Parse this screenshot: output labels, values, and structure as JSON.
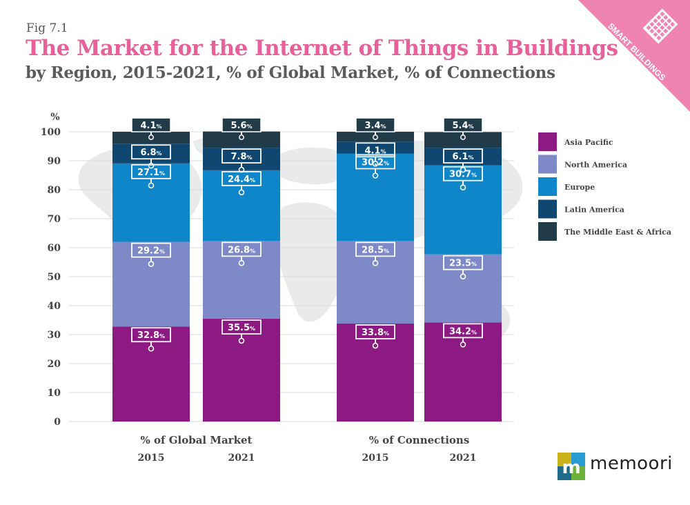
{
  "figure_label": "Fig 7.1",
  "title": "The Market for the Internet of Things in Buildings",
  "subtitle": "by Region, 2015-2021, % of Global Market, % of Connections",
  "badge": {
    "text": "SMART BUILDINGS",
    "color": "#ef84b3",
    "icon": "building-grid-icon"
  },
  "logo": {
    "text": "memoori",
    "icon": "memoori-logo-icon"
  },
  "chart_data": {
    "type": "bar",
    "stacked": true,
    "ylabel": "%",
    "ylim": [
      0,
      100
    ],
    "yticks": [
      0,
      10,
      20,
      30,
      40,
      50,
      60,
      70,
      80,
      90,
      100
    ],
    "grid": true,
    "legend_position": "right",
    "groups": [
      {
        "label": "% of Global Market",
        "categories": [
          "2015",
          "2021"
        ]
      },
      {
        "label": "% of Connections",
        "categories": [
          "2015",
          "2021"
        ]
      }
    ],
    "categories": [
      "2015",
      "2021",
      "2015",
      "2021"
    ],
    "series": [
      {
        "name": "Asia Pacific",
        "color": "#8c1a82",
        "values": [
          32.8,
          35.5,
          33.8,
          34.2
        ]
      },
      {
        "name": "North America",
        "color": "#7e89c8",
        "values": [
          29.2,
          26.8,
          28.5,
          23.5
        ]
      },
      {
        "name": "Europe",
        "color": "#0f86c9",
        "values": [
          27.1,
          24.4,
          30.2,
          30.7
        ]
      },
      {
        "name": "Latin America",
        "color": "#0f4770",
        "values": [
          6.8,
          7.8,
          4.1,
          6.1
        ]
      },
      {
        "name": "The Middle East & Africa",
        "color": "#213c48",
        "values": [
          4.1,
          5.6,
          3.4,
          5.4
        ]
      }
    ],
    "value_suffix": "%"
  }
}
